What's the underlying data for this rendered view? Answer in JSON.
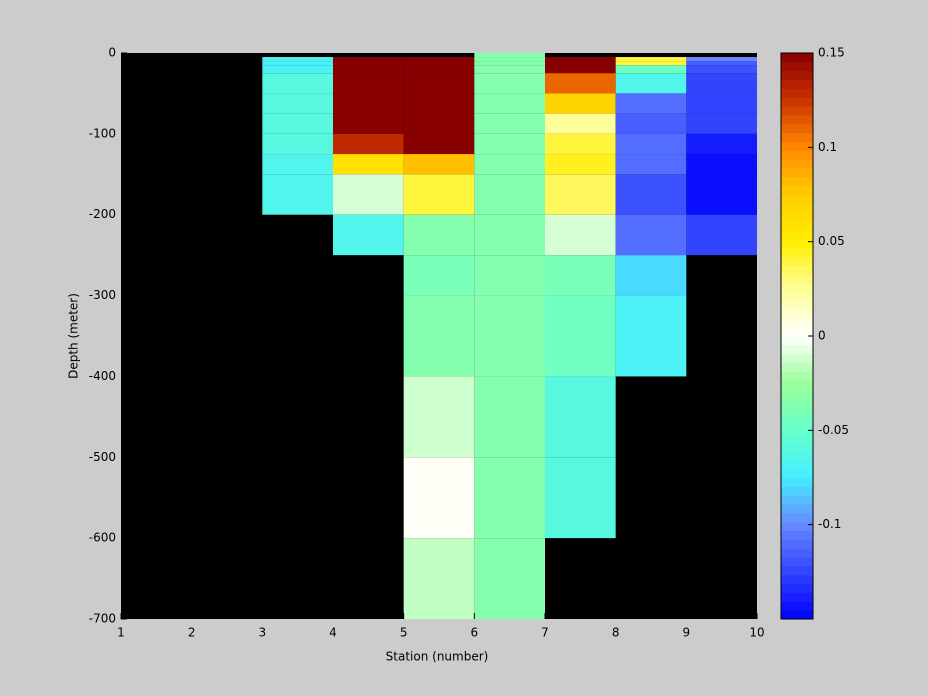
{
  "chart_data": {
    "type": "heatmap",
    "xlabel": "Station (number)",
    "ylabel": "Depth (meter)",
    "x": [
      1,
      2,
      3,
      4,
      5,
      6,
      7,
      8,
      9,
      10
    ],
    "y": [
      0,
      -5,
      -10,
      -15,
      -25,
      -50,
      -75,
      -100,
      -125,
      -150,
      -200,
      -250,
      -300,
      -400,
      -500,
      -600,
      -700
    ],
    "values": [
      [
        null,
        null,
        null,
        null,
        null,
        -0.035,
        null,
        null,
        null
      ],
      [
        null,
        null,
        -0.07,
        0.15,
        0.15,
        -0.035,
        0.15,
        0.04,
        -0.1
      ],
      [
        null,
        null,
        -0.07,
        0.15,
        0.15,
        -0.035,
        0.15,
        0.04,
        -0.115
      ],
      [
        null,
        null,
        -0.07,
        0.15,
        0.15,
        -0.035,
        0.15,
        -0.045,
        -0.12
      ],
      [
        null,
        null,
        -0.06,
        0.15,
        0.15,
        -0.035,
        0.11,
        -0.065,
        -0.125
      ],
      [
        null,
        null,
        -0.06,
        0.15,
        0.15,
        -0.035,
        0.07,
        -0.11,
        -0.125
      ],
      [
        null,
        null,
        -0.06,
        0.15,
        0.15,
        -0.035,
        0.025,
        -0.115,
        -0.125
      ],
      [
        null,
        null,
        -0.06,
        0.13,
        0.15,
        -0.035,
        0.04,
        -0.11,
        -0.14
      ],
      [
        null,
        null,
        -0.065,
        0.06,
        0.08,
        -0.035,
        0.045,
        -0.11,
        -0.145
      ],
      [
        null,
        null,
        -0.065,
        -0.01,
        0.04,
        -0.035,
        0.035,
        -0.12,
        -0.145
      ],
      [
        null,
        null,
        null,
        -0.065,
        -0.035,
        -0.035,
        -0.01,
        -0.11,
        -0.125
      ],
      [
        null,
        null,
        null,
        null,
        -0.04,
        -0.035,
        -0.04,
        -0.08,
        null
      ],
      [
        null,
        null,
        null,
        null,
        -0.035,
        -0.035,
        -0.045,
        -0.07,
        null
      ],
      [
        null,
        null,
        null,
        null,
        -0.012,
        -0.035,
        -0.06,
        null,
        null
      ],
      [
        null,
        null,
        null,
        null,
        0.002,
        -0.035,
        -0.06,
        null,
        null
      ],
      [
        null,
        null,
        null,
        null,
        -0.015,
        -0.035,
        null,
        null,
        null
      ]
    ],
    "xlim": [
      1,
      10
    ],
    "ylim": [
      -700,
      0
    ],
    "xticks": [
      1,
      2,
      3,
      4,
      5,
      6,
      7,
      8,
      9,
      10
    ],
    "yticks": [
      0,
      -100,
      -200,
      -300,
      -400,
      -500,
      -600,
      -700
    ],
    "clim": [
      -0.15,
      0.15
    ],
    "cticks": [
      0.15,
      0.1,
      0.05,
      0,
      -0.05,
      -0.1
    ],
    "colormap": [
      "#0000ff",
      "#3344ff",
      "#6688ff",
      "#44eeff",
      "#66ffcc",
      "#99ff99",
      "#ffffff",
      "#ffff99",
      "#ffee00",
      "#ffcc00",
      "#ff8800",
      "#cc3300",
      "#880000"
    ],
    "nodata_color": "#000000"
  }
}
